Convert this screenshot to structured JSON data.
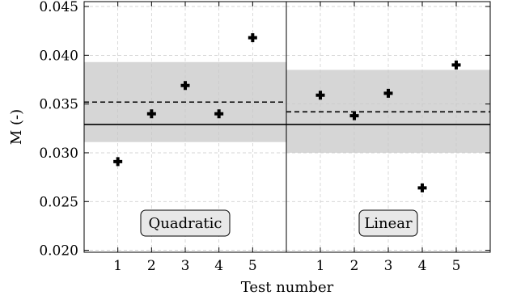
{
  "chart_data": {
    "type": "scatter",
    "xlabel": "Test number",
    "ylabel": "M (-)",
    "ylim": [
      0.0198,
      0.0455
    ],
    "xlim": [
      0,
      6
    ],
    "xticks": [
      "1",
      "2",
      "3",
      "4",
      "5"
    ],
    "yticks": [
      "0.020",
      "0.025",
      "0.030",
      "0.035",
      "0.040",
      "0.045"
    ],
    "grid": true,
    "panels": [
      {
        "label": "Quadratic",
        "x": [
          1,
          2,
          3,
          4,
          5
        ],
        "values": [
          0.0291,
          0.034,
          0.0369,
          0.034,
          0.0418
        ],
        "solid_line": 0.0329,
        "dashed_line": 0.0352,
        "band": [
          0.0311,
          0.0393
        ]
      },
      {
        "label": "Linear",
        "x": [
          1,
          2,
          3,
          4,
          5
        ],
        "values": [
          0.0359,
          0.0338,
          0.0361,
          0.0264,
          0.039
        ],
        "solid_line": 0.0329,
        "dashed_line": 0.0342,
        "band": [
          0.03,
          0.0385
        ]
      }
    ]
  }
}
